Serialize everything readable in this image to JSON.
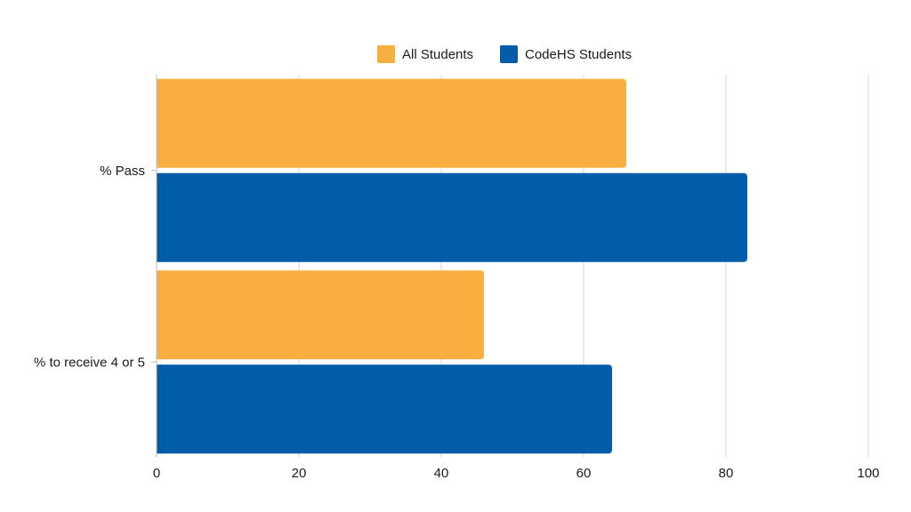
{
  "chart_data": {
    "type": "bar",
    "orientation": "horizontal",
    "categories": [
      "% Pass",
      "% to receive 4 or 5"
    ],
    "series": [
      {
        "name": "All Students",
        "color": "#F9AE40",
        "values": [
          66,
          46
        ]
      },
      {
        "name": "CodeHS Students",
        "color": "#015CAA",
        "values": [
          83,
          64
        ]
      }
    ],
    "xlim": [
      0,
      100
    ],
    "xticks": [
      "0",
      "20",
      "40",
      "60",
      "80",
      "100"
    ],
    "grid": true,
    "legend_position": "top-center",
    "title": "",
    "xlabel": "",
    "ylabel": ""
  }
}
